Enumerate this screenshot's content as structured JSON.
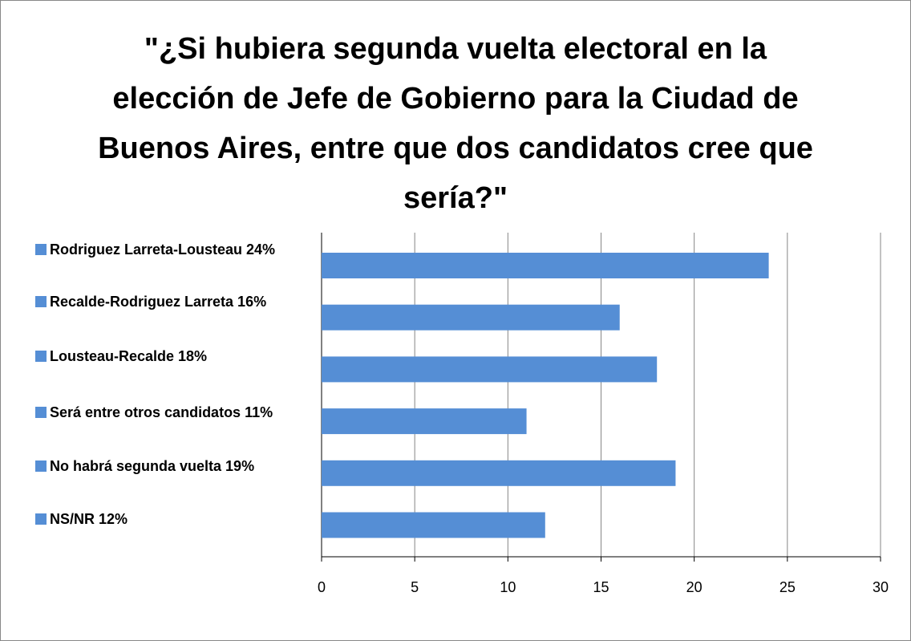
{
  "chart_data": {
    "type": "bar",
    "orientation": "horizontal",
    "title": "\"¿Si hubiera segunda vuelta electoral en la elección de Jefe de Gobierno para la Ciudad de Buenos Aires, entre que dos candidatos cree que sería?\"",
    "categories": [
      null
    ],
    "series": [
      {
        "name": "Rodriguez Larreta-Lousteau 24%",
        "color": "#558ed5",
        "values": [
          24
        ]
      },
      {
        "name": "Recalde-Rodriguez Larreta 16%",
        "color": "#558ed5",
        "values": [
          16
        ]
      },
      {
        "name": "Lousteau-Recalde 18%",
        "color": "#558ed5",
        "values": [
          18
        ]
      },
      {
        "name": "Será entre otros candidatos 11%",
        "color": "#558ed5",
        "values": [
          11
        ]
      },
      {
        "name": "No habrá segunda vuelta 19%",
        "color": "#558ed5",
        "values": [
          19
        ]
      },
      {
        "name": "NS/NR 12%",
        "color": "#558ed5",
        "values": [
          12
        ]
      }
    ],
    "xlim": [
      0,
      30
    ],
    "xticks": [
      0,
      5,
      10,
      15,
      20,
      25,
      30
    ],
    "grid": true,
    "legend": "left"
  }
}
